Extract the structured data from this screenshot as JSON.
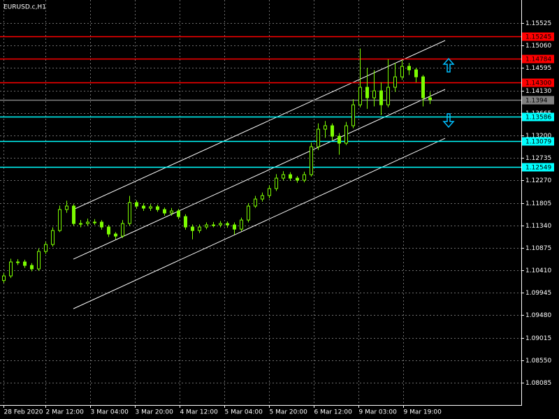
{
  "chart_data": {
    "type": "candlestick",
    "title": "EURUSD.c,H1",
    "color": "#7cfc00",
    "bull_fill": "#000000",
    "background": "#000000",
    "grid": true,
    "xlim": [
      -0.5,
      74.1
    ],
    "ylim": [
      1.07623,
      1.16002
    ],
    "xticks": [
      {
        "value": 0,
        "label": "28 Feb 2020"
      },
      {
        "value": 6,
        "label": "2 Mar 12:00"
      },
      {
        "value": 12.4,
        "label": "3 Mar 04:00"
      },
      {
        "value": 18.8,
        "label": "3 Mar 20:00"
      },
      {
        "value": 25.2,
        "label": "4 Mar 12:00"
      },
      {
        "value": 31.6,
        "label": "5 Mar 04:00"
      },
      {
        "value": 38,
        "label": "5 Mar 20:00"
      },
      {
        "value": 44.4,
        "label": "6 Mar 12:00"
      },
      {
        "value": 50.8,
        "label": "9 Mar 03:00"
      },
      {
        "value": 57.2,
        "label": "9 Mar 19:00"
      }
    ],
    "yticks": [
      1.15525,
      {
        "value": 1.1506,
        "label": "1.15060"
      },
      1.14595,
      {
        "value": 1.1413,
        "label": "1.14130"
      },
      1.13665,
      {
        "value": 1.132,
        "label": "1.13200"
      },
      1.12735,
      {
        "value": 1.1227,
        "label": "1.12270"
      },
      1.11805,
      {
        "value": 1.1134,
        "label": "1.11340"
      },
      1.10875,
      {
        "value": 1.1041,
        "label": "1.10410"
      },
      1.09945,
      {
        "value": 1.0948,
        "label": "1.09480"
      },
      1.09015,
      {
        "value": 1.0855,
        "label": "1.08550"
      },
      1.08085
    ],
    "open": [
      1.102,
      1.10294,
      1.10583,
      1.10583,
      1.10511,
      1.10439,
      1.108,
      1.10944,
      1.11233,
      1.11667,
      1.11739,
      1.11378,
      1.11378,
      1.11407,
      1.11407,
      1.11306,
      1.11161,
      1.11118,
      1.11378,
      1.11811,
      1.11739,
      1.11696,
      1.11725,
      1.11667,
      1.11595,
      1.11638,
      1.11522,
      1.11306,
      1.11233,
      1.11306,
      1.11349,
      1.11349,
      1.11378,
      1.11349,
      1.11262,
      1.1145,
      1.11739,
      1.11884,
      1.11956,
      1.121,
      1.12317,
      1.12389,
      1.12317,
      1.12274,
      1.12389,
      1.12967,
      1.13329,
      1.13401,
      1.13184,
      1.1304,
      1.13401,
      1.13834,
      1.14196,
      1.13979,
      1.14123,
      1.13834,
      1.14196,
      1.14412,
      1.14629,
      1.14557,
      1.14412,
      1.13979
    ],
    "high": [
      1.1035,
      1.1065,
      1.1064,
      1.1063,
      1.1056,
      1.1086,
      1.11,
      1.113,
      1.1175,
      1.1185,
      1.1178,
      1.1145,
      1.1148,
      1.1147,
      1.1145,
      1.1135,
      1.112,
      1.1145,
      1.1195,
      1.1186,
      1.118,
      1.1178,
      1.1177,
      1.1171,
      1.117,
      1.1168,
      1.1157,
      1.1136,
      1.1136,
      1.114,
      1.1141,
      1.1143,
      1.1142,
      1.114,
      1.115,
      1.118,
      1.1195,
      1.1202,
      1.1217,
      1.124,
      1.1246,
      1.1244,
      1.1236,
      1.1245,
      1.1305,
      1.1345,
      1.135,
      1.1345,
      1.1325,
      1.1348,
      1.1395,
      1.14998,
      1.146,
      1.1455,
      1.143,
      1.14774,
      1.147,
      1.1476,
      1.147,
      1.146,
      1.1445,
      1.141
    ],
    "low": [
      1.1015,
      1.1025,
      1.1052,
      1.1046,
      1.1039,
      1.104,
      1.1075,
      1.109,
      1.112,
      1.116,
      1.1133,
      1.113,
      1.1133,
      1.1135,
      1.1125,
      1.111,
      1.1105,
      1.1108,
      1.1133,
      1.1168,
      1.1164,
      1.1164,
      1.1162,
      1.1154,
      1.1154,
      1.1147,
      1.1125,
      1.1105,
      1.1118,
      1.1126,
      1.113,
      1.113,
      1.1129,
      1.1115,
      1.1122,
      1.114,
      1.117,
      1.1183,
      1.119,
      1.1205,
      1.1227,
      1.1226,
      1.1222,
      1.1223,
      1.1235,
      1.129,
      1.1315,
      1.131,
      1.128,
      1.13,
      1.1335,
      1.1378,
      1.1375,
      1.138,
      1.13618,
      1.1378,
      1.141,
      1.1435,
      1.1445,
      1.143,
      1.138,
      1.1385
    ],
    "close": [
      1.10294,
      1.10583,
      1.10583,
      1.10511,
      1.10439,
      1.108,
      1.10944,
      1.11233,
      1.11667,
      1.11739,
      1.11378,
      1.11378,
      1.11407,
      1.11407,
      1.11306,
      1.11161,
      1.11118,
      1.11378,
      1.11811,
      1.11739,
      1.11696,
      1.11725,
      1.11667,
      1.11595,
      1.11638,
      1.11522,
      1.11306,
      1.11233,
      1.11306,
      1.11349,
      1.11349,
      1.11378,
      1.11349,
      1.11262,
      1.1145,
      1.11739,
      1.11884,
      1.11956,
      1.121,
      1.12317,
      1.12389,
      1.12317,
      1.12274,
      1.12389,
      1.12967,
      1.13329,
      1.13401,
      1.13184,
      1.1304,
      1.13401,
      1.13834,
      1.14196,
      1.13979,
      1.14123,
      1.13834,
      1.14196,
      1.14412,
      1.14629,
      1.14557,
      1.14412,
      1.13979,
      1.1394
    ],
    "current_price": 1.1394,
    "current_color": "#808080",
    "levels": [
      {
        "value": 1.15245,
        "color": "#ff0000"
      },
      {
        "value": 1.14784,
        "color": "#ff0000"
      },
      {
        "value": 1.143,
        "label": "1.14300",
        "color": "#ff0000"
      },
      {
        "value": 1.13586,
        "color": "#00ffff"
      },
      {
        "value": 1.13079,
        "color": "#00ffff"
      },
      {
        "value": 1.12549,
        "color": "#00ffff"
      }
    ],
    "trendlines": [
      {
        "x": [
          10,
          63.2
        ],
        "y": [
          1.11667,
          1.15164
        ]
      },
      {
        "x": [
          10,
          63.2
        ],
        "y": [
          1.10641,
          1.14153
        ]
      },
      {
        "x": [
          10,
          63.2
        ],
        "y": [
          1.09615,
          1.13141
        ]
      }
    ]
  }
}
